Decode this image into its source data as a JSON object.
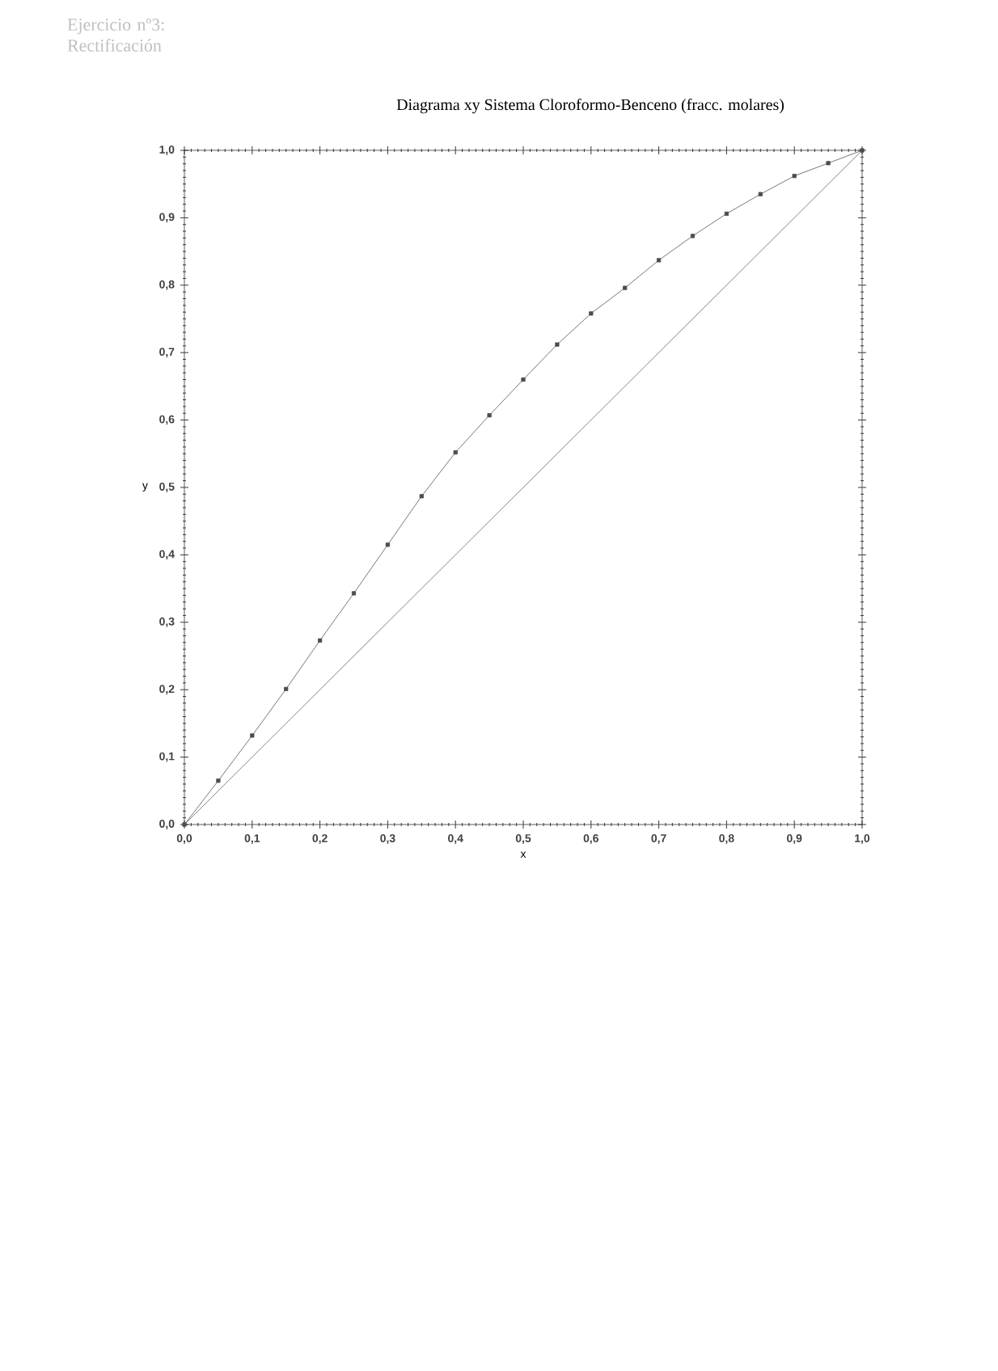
{
  "chart_data": {
    "type": "line",
    "title": "Diagrama xy Sistema Cloroformo-Benceno (fracc. molares)",
    "xlabel": "x",
    "ylabel": "y",
    "annotations": [
      "Ejercicio nº3: Rectificación"
    ],
    "xlim": [
      0,
      1
    ],
    "ylim": [
      0,
      1
    ],
    "xticks": [
      {
        "value": 0,
        "label": "0,0"
      },
      {
        "value": 0.1,
        "label": "0,1"
      },
      {
        "value": 0.2,
        "label": "0,2"
      },
      {
        "value": 0.3,
        "label": "0,3"
      },
      {
        "value": 0.4,
        "label": "0,4"
      },
      {
        "value": 0.5,
        "label": "0,5"
      },
      {
        "value": 0.6,
        "label": "0,6"
      },
      {
        "value": 0.7,
        "label": "0,7"
      },
      {
        "value": 0.8,
        "label": "0,8"
      },
      {
        "value": 0.9,
        "label": "0,9"
      },
      {
        "value": 1,
        "label": "1,0"
      }
    ],
    "yticks": [
      {
        "value": 0,
        "label": "0,0"
      },
      {
        "value": 0.1,
        "label": "0,1"
      },
      {
        "value": 0.2,
        "label": "0,2"
      },
      {
        "value": 0.3,
        "label": "0,3"
      },
      {
        "value": 0.4,
        "label": "0,4"
      },
      {
        "value": 0.5,
        "label": "0,5"
      },
      {
        "value": 0.6,
        "label": "0,6"
      },
      {
        "value": 0.7,
        "label": "0,7"
      },
      {
        "value": 0.8,
        "label": "0,8"
      },
      {
        "value": 0.9,
        "label": "0,9"
      },
      {
        "value": 1,
        "label": "1,0"
      }
    ],
    "grid": false,
    "series": [
      {
        "color": "#555555",
        "marker": "square",
        "x": [
          0,
          0.05,
          0.1,
          0.15,
          0.2,
          0.25,
          0.3,
          0.35,
          0.4,
          0.45,
          0.5,
          0.55,
          0.6,
          0.65,
          0.7,
          0.75,
          0.8,
          0.85,
          0.9,
          0.95,
          1.0
        ],
        "values": [
          0,
          0.065,
          0.132,
          0.201,
          0.273,
          0.343,
          0.415,
          0.487,
          0.552,
          0.607,
          0.66,
          0.712,
          0.758,
          0.796,
          0.837,
          0.873,
          0.906,
          0.935,
          0.962,
          0.981,
          1.0
        ]
      },
      {
        "color": "#666666",
        "x": [
          0,
          1
        ],
        "values": [
          0,
          1
        ]
      }
    ]
  }
}
